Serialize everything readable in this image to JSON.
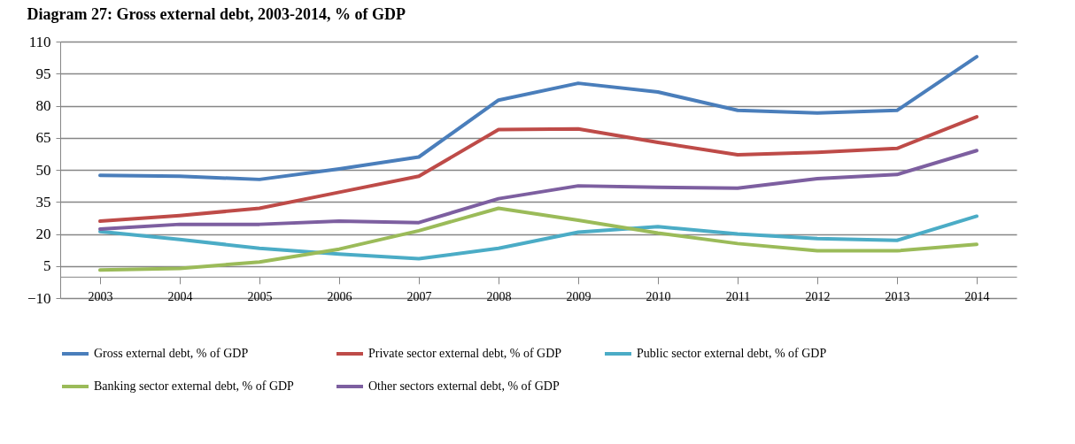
{
  "chart_data": {
    "type": "line",
    "title": "Diagram 27:      Gross external debt, 2003-2014, % of GDP",
    "categories": [
      "2003",
      "2004",
      "2005",
      "2006",
      "2007",
      "2008",
      "2009",
      "2010",
      "2011",
      "2012",
      "2013",
      "2014"
    ],
    "series": [
      {
        "name": "Gross external debt, % of GDP",
        "color": "#4a7ebb",
        "values": [
          47.4,
          47,
          45.5,
          50.4,
          56,
          82.6,
          90.5,
          86.4,
          77.8,
          76.6,
          77.8,
          102.9
        ]
      },
      {
        "name": "Private sector external debt, % of GDP",
        "color": "#be4b48",
        "values": [
          26,
          28.6,
          32,
          39.5,
          47,
          68.8,
          69.1,
          62.8,
          57,
          58.2,
          60,
          74.8
        ]
      },
      {
        "name": "Public sector external debt, % of GDP",
        "color": "#4bacc6",
        "values": [
          21.1,
          17.4,
          13.3,
          10.6,
          8.4,
          13.3,
          20.8,
          23.4,
          20,
          17.8,
          17,
          28.3
        ]
      },
      {
        "name": "Banking sector external debt, % of GDP",
        "color": "#9bbb59",
        "values": [
          3.1,
          3.9,
          6.9,
          12.9,
          21.5,
          32,
          26.4,
          20.4,
          15.5,
          12.1,
          12.1,
          15.1
        ]
      },
      {
        "name": "Other sectors external debt, % of GDP",
        "color": "#7d5fa0",
        "values": [
          22.3,
          24.5,
          24.5,
          26,
          25.3,
          36.5,
          42.5,
          41.8,
          41.4,
          45.9,
          47.8,
          59
        ]
      }
    ],
    "ylim": [
      -10,
      110
    ],
    "yticks": [
      -10,
      5,
      20,
      35,
      50,
      65,
      80,
      95,
      110
    ],
    "grid": "y",
    "legend": "bottom",
    "marker": "none",
    "line_style": "solid"
  }
}
